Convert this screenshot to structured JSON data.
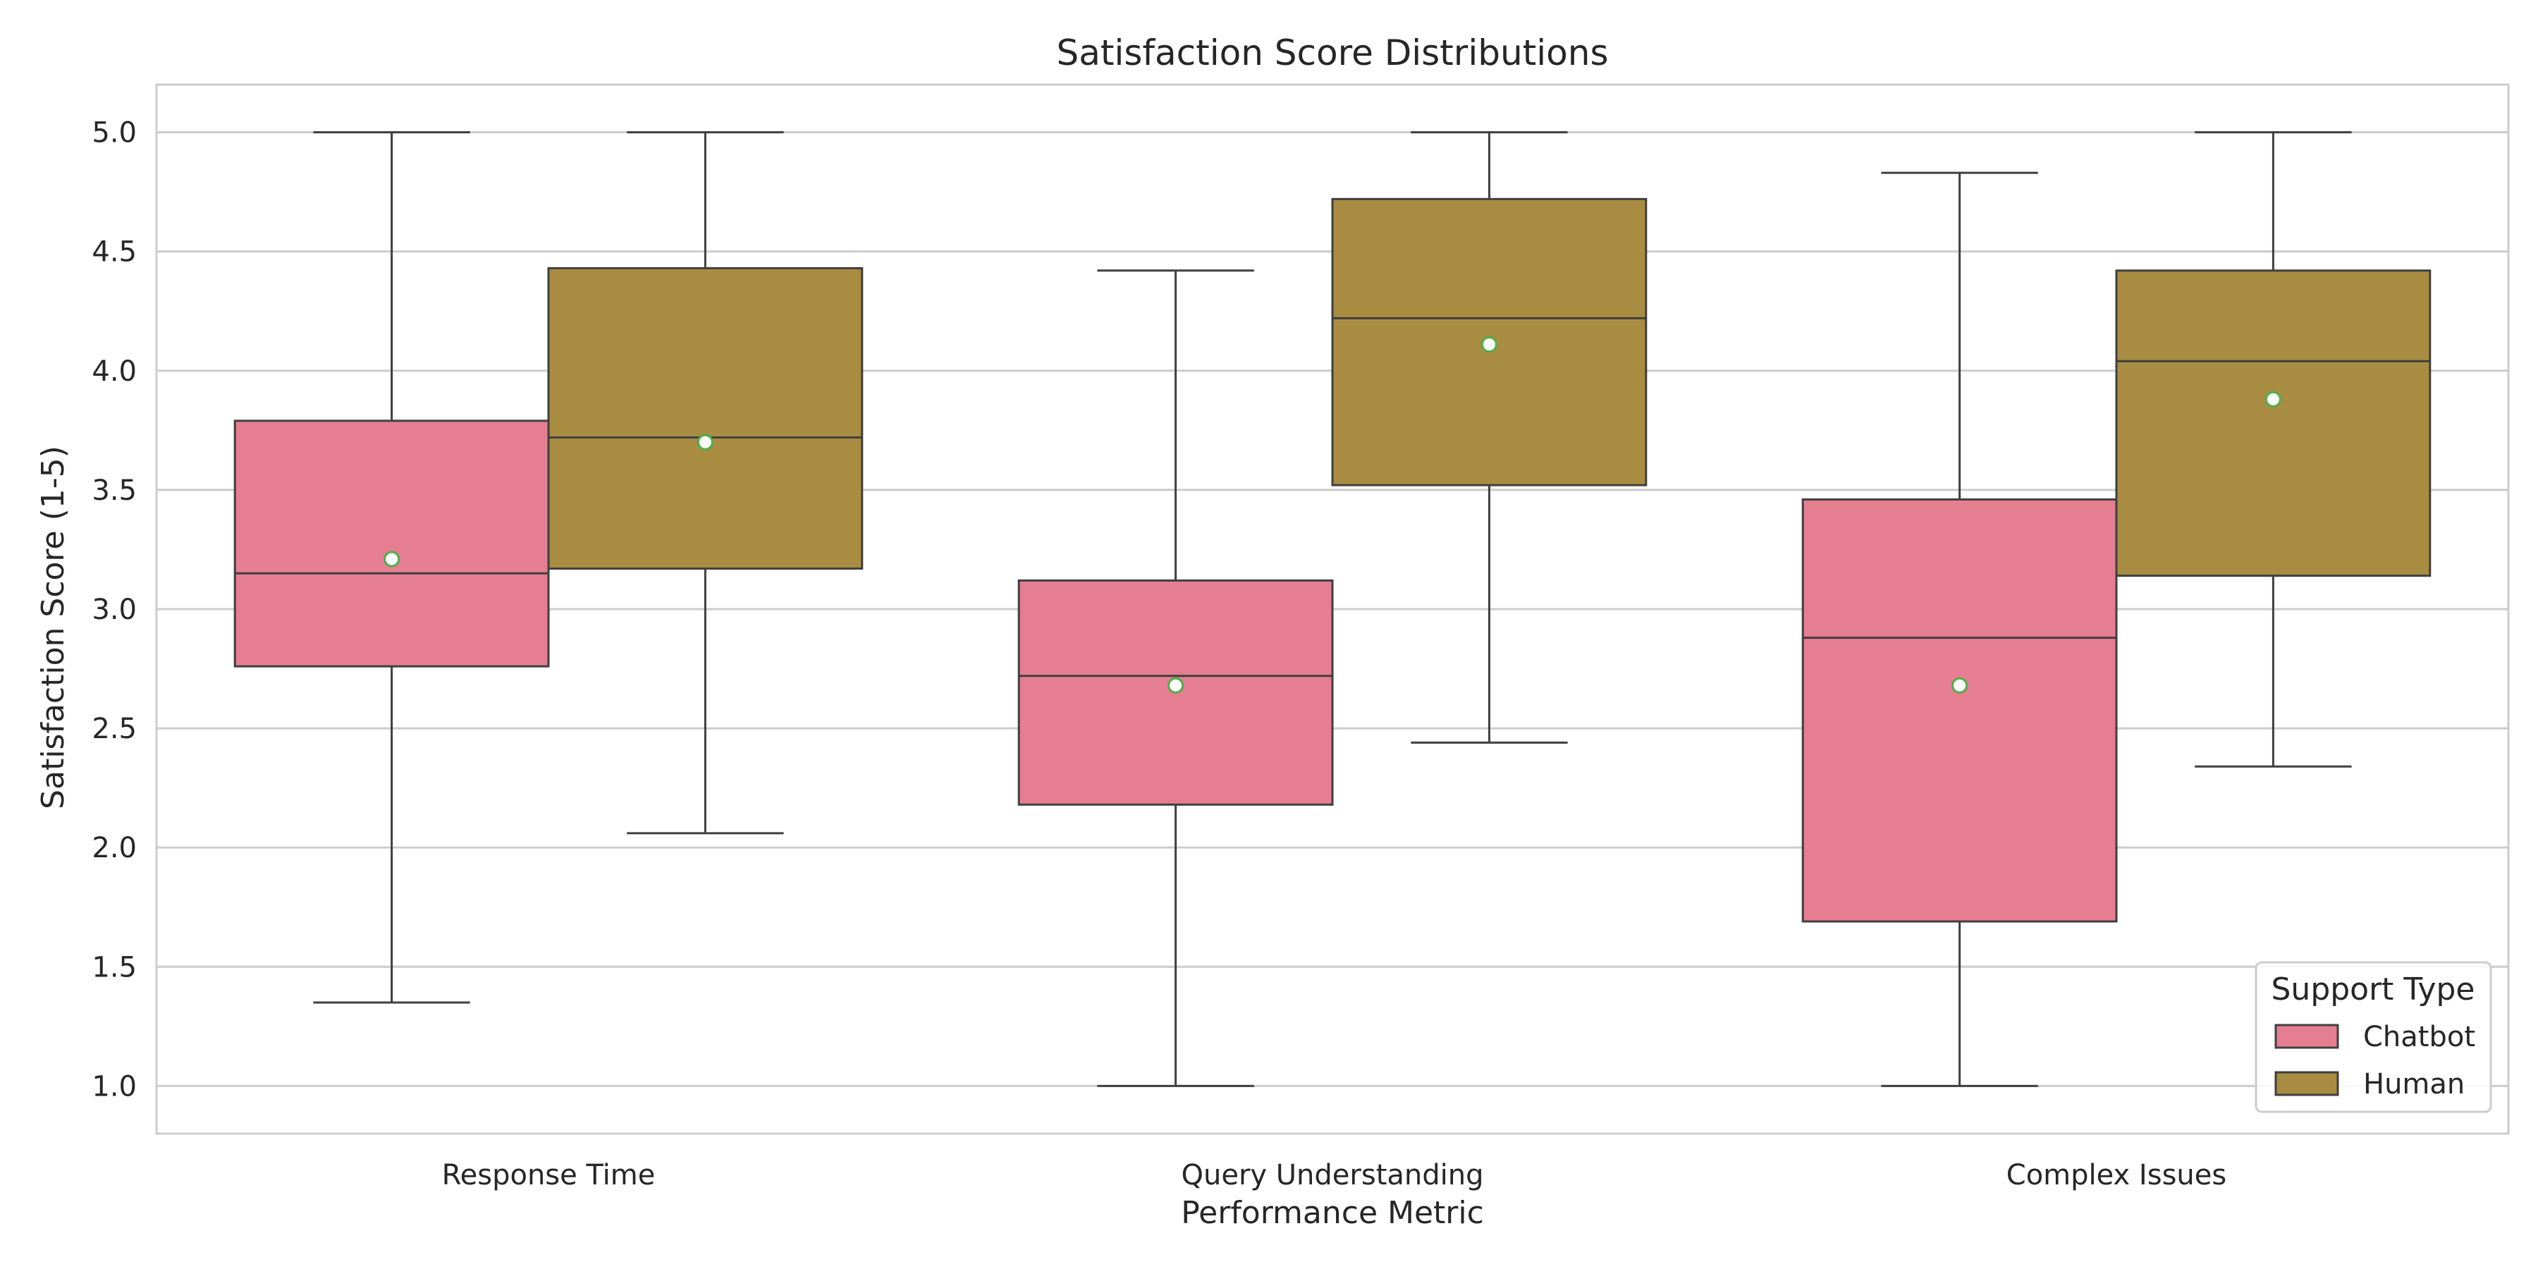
{
  "chart_data": {
    "type": "box",
    "title": "Satisfaction Score Distributions",
    "xlabel": "Performance Metric",
    "ylabel": "Satisfaction Score (1-5)",
    "ylim": [
      0.8,
      5.2
    ],
    "yticks": [
      "1.0",
      "1.5",
      "2.0",
      "2.5",
      "3.0",
      "3.5",
      "4.0",
      "4.5",
      "5.0"
    ],
    "grid": "horizontal",
    "categories": [
      "Response Time",
      "Query Understanding",
      "Complex Issues"
    ],
    "legend": {
      "title": "Support Type",
      "placement": "lower-right"
    },
    "mean_marker_color": "#4daf4a",
    "series": [
      {
        "name": "Chatbot",
        "color": "#e67e91",
        "boxes": [
          {
            "whisker_low": 1.35,
            "q1": 2.76,
            "median": 3.15,
            "q3": 3.79,
            "whisker_high": 5.0,
            "mean": 3.21
          },
          {
            "whisker_low": 1.0,
            "q1": 2.18,
            "median": 2.72,
            "q3": 3.12,
            "whisker_high": 4.42,
            "mean": 2.68
          },
          {
            "whisker_low": 1.0,
            "q1": 1.69,
            "median": 2.88,
            "q3": 3.46,
            "whisker_high": 4.83,
            "mean": 2.68
          }
        ]
      },
      {
        "name": "Human",
        "color": "#a88c41",
        "boxes": [
          {
            "whisker_low": 2.06,
            "q1": 3.17,
            "median": 3.72,
            "q3": 4.43,
            "whisker_high": 5.0,
            "mean": 3.7
          },
          {
            "whisker_low": 2.44,
            "q1": 3.52,
            "median": 4.22,
            "q3": 4.72,
            "whisker_high": 5.0,
            "mean": 4.11
          },
          {
            "whisker_low": 2.34,
            "q1": 3.14,
            "median": 4.04,
            "q3": 4.42,
            "whisker_high": 5.0,
            "mean": 3.88
          }
        ]
      }
    ]
  }
}
